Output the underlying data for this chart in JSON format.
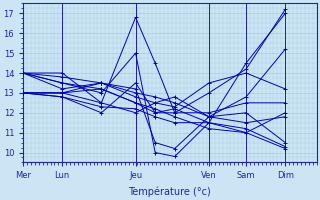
{
  "xlabel": "Température (°c)",
  "bg_color": "#cce5f5",
  "grid_color": "#aaccdd",
  "line_color": "#0000bb",
  "tick_label_color": "#2222aa",
  "axis_label_color": "#2222aa",
  "ylim": [
    9.5,
    17.5
  ],
  "yticks": [
    10,
    11,
    12,
    13,
    14,
    15,
    16,
    17
  ],
  "day_positions": [
    0,
    40,
    115,
    190,
    228,
    268
  ],
  "day_labels": [
    "Mer",
    "Lun",
    "Jeu",
    "Ven",
    "Sam",
    "Dim"
  ],
  "xlim": [
    0,
    300
  ],
  "series": [
    [
      [
        0,
        14.0
      ],
      [
        40,
        14.0
      ],
      [
        80,
        12.5
      ],
      [
        115,
        16.8
      ],
      [
        135,
        14.5
      ],
      [
        155,
        12.0
      ],
      [
        190,
        13.0
      ],
      [
        228,
        14.2
      ],
      [
        268,
        17.2
      ]
    ],
    [
      [
        0,
        14.0
      ],
      [
        40,
        13.5
      ],
      [
        80,
        13.0
      ],
      [
        115,
        15.0
      ],
      [
        135,
        10.0
      ],
      [
        155,
        9.8
      ],
      [
        190,
        11.5
      ],
      [
        228,
        14.5
      ],
      [
        268,
        17.0
      ]
    ],
    [
      [
        0,
        13.0
      ],
      [
        40,
        13.0
      ],
      [
        80,
        13.5
      ],
      [
        115,
        13.2
      ],
      [
        135,
        10.5
      ],
      [
        155,
        10.2
      ],
      [
        190,
        11.8
      ],
      [
        228,
        12.0
      ],
      [
        268,
        10.5
      ]
    ],
    [
      [
        0,
        13.0
      ],
      [
        40,
        12.8
      ],
      [
        80,
        12.3
      ],
      [
        115,
        12.2
      ],
      [
        135,
        11.8
      ],
      [
        155,
        11.5
      ],
      [
        190,
        11.5
      ],
      [
        228,
        11.2
      ],
      [
        268,
        10.3
      ]
    ],
    [
      [
        0,
        13.0
      ],
      [
        40,
        12.8
      ],
      [
        80,
        12.0
      ],
      [
        115,
        13.5
      ],
      [
        135,
        12.0
      ],
      [
        155,
        12.2
      ],
      [
        190,
        11.5
      ],
      [
        228,
        11.0
      ],
      [
        268,
        12.0
      ]
    ],
    [
      [
        0,
        14.0
      ],
      [
        40,
        13.5
      ],
      [
        80,
        13.2
      ],
      [
        115,
        12.5
      ],
      [
        135,
        12.0
      ],
      [
        155,
        12.0
      ],
      [
        190,
        12.0
      ],
      [
        228,
        12.5
      ],
      [
        268,
        12.5
      ]
    ],
    [
      [
        0,
        14.0
      ],
      [
        40,
        13.8
      ],
      [
        80,
        13.5
      ],
      [
        115,
        12.8
      ],
      [
        135,
        12.5
      ],
      [
        155,
        12.3
      ],
      [
        190,
        13.5
      ],
      [
        228,
        14.0
      ],
      [
        268,
        13.2
      ]
    ],
    [
      [
        0,
        14.0
      ],
      [
        40,
        13.2
      ],
      [
        80,
        13.5
      ],
      [
        115,
        13.0
      ],
      [
        135,
        12.8
      ],
      [
        155,
        12.5
      ],
      [
        190,
        11.8
      ],
      [
        228,
        11.5
      ],
      [
        268,
        11.8
      ]
    ],
    [
      [
        0,
        13.0
      ],
      [
        40,
        13.0
      ],
      [
        80,
        13.2
      ],
      [
        115,
        12.5
      ],
      [
        135,
        12.2
      ],
      [
        155,
        11.8
      ],
      [
        190,
        11.2
      ],
      [
        228,
        11.0
      ],
      [
        268,
        10.2
      ]
    ],
    [
      [
        0,
        13.0
      ],
      [
        40,
        13.0
      ],
      [
        80,
        12.5
      ],
      [
        115,
        12.0
      ],
      [
        135,
        12.5
      ],
      [
        155,
        12.8
      ],
      [
        190,
        11.8
      ],
      [
        228,
        12.8
      ],
      [
        268,
        15.2
      ]
    ]
  ]
}
